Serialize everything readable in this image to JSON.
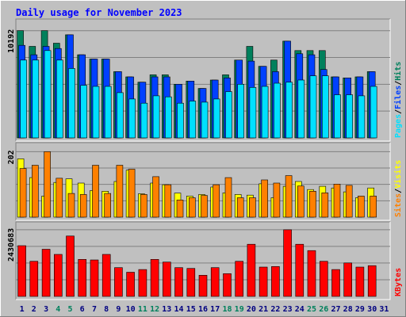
{
  "chart_data": {
    "type": "bar",
    "title": "Daily usage for November 2023",
    "colors": {
      "background": "#c0c0c0",
      "panel": "#c0c0c0",
      "title_text": "#0000ff",
      "hits": "#00805c",
      "files": "#0040ff",
      "pages": "#00e0ff",
      "visits": "#ffff00",
      "sites": "#ff8000",
      "kbytes": "#ff0000",
      "weekend_label": "#00805c",
      "weekday_label": "#000080"
    },
    "days": [
      "1",
      "2",
      "3",
      "4",
      "5",
      "6",
      "7",
      "8",
      "9",
      "10",
      "11",
      "12",
      "13",
      "14",
      "15",
      "16",
      "17",
      "18",
      "19",
      "20",
      "21",
      "22",
      "23",
      "24",
      "25",
      "26",
      "27",
      "28",
      "29",
      "30",
      "31"
    ],
    "weekend_days": [
      "4",
      "5",
      "11",
      "12",
      "18",
      "19",
      "25",
      "26"
    ],
    "panels": [
      {
        "name": "hits_files_pages",
        "axis_max_label": "10192",
        "ylim": [
          0,
          11000
        ],
        "legend": [
          {
            "text": "Pages",
            "color_key": "pages"
          },
          {
            "text": "Files",
            "color_key": "files"
          },
          {
            "text": "Hits",
            "color_key": "hits"
          }
        ],
        "series": [
          {
            "name": "Hits",
            "color_key": "hits",
            "values": [
              10192,
              8700,
              10192,
              9000,
              9800,
              7900,
              7500,
              7500,
              6300,
              5800,
              5300,
              6000,
              6000,
              5100,
              5400,
              4700,
              5500,
              6000,
              7400,
              8700,
              6800,
              7400,
              9200,
              8300,
              8300,
              8300,
              5800,
              5700,
              5800,
              6300,
              0
            ]
          },
          {
            "name": "Files",
            "color_key": "files",
            "values": [
              8800,
              7900,
              8700,
              8500,
              9800,
              7900,
              7500,
              7500,
              6300,
              5800,
              5300,
              5800,
              5800,
              5100,
              5400,
              4700,
              5500,
              5700,
              7400,
              7300,
              6800,
              6300,
              9200,
              8000,
              7900,
              6500,
              5800,
              5700,
              5800,
              6300,
              0
            ]
          },
          {
            "name": "Pages",
            "color_key": "pages",
            "values": [
              7400,
              7400,
              8300,
              7400,
              6600,
              5000,
              4900,
              4900,
              4300,
              3700,
              3300,
              4000,
              3900,
              3300,
              3500,
              3400,
              3700,
              4400,
              5100,
              4800,
              4900,
              5200,
              5300,
              5500,
              5900,
              5900,
              4100,
              4100,
              4000,
              4900,
              0
            ]
          }
        ]
      },
      {
        "name": "visits_sites",
        "axis_max_label": "202",
        "ylim": [
          0,
          220
        ],
        "legend": [
          {
            "text": "Sites",
            "color_key": "sites"
          },
          {
            "text": "Visits",
            "color_key": "visits"
          }
        ],
        "series": [
          {
            "name": "Visits",
            "color_key": "visits",
            "values": [
              180,
              122,
              65,
              107,
              118,
              105,
              82,
              80,
              110,
              145,
              72,
              105,
              100,
              74,
              65,
              70,
              93,
              75,
              70,
              68,
              103,
              60,
              95,
              110,
              85,
              95,
              90,
              78,
              60,
              90,
              0
            ]
          },
          {
            "name": "Sites",
            "color_key": "sites",
            "values": [
              150,
              160,
              202,
              120,
              73,
              70,
              160,
              73,
              160,
              148,
              70,
              125,
              100,
              53,
              60,
              67,
              100,
              122,
              60,
              60,
              115,
              105,
              128,
              96,
              80,
              75,
              102,
              98,
              65,
              65,
              0
            ]
          }
        ]
      },
      {
        "name": "kbytes",
        "axis_max_label": "2430683",
        "ylim": [
          0,
          2600000
        ],
        "legend": [
          {
            "text": "KBytes",
            "color_key": "kbytes"
          }
        ],
        "series": [
          {
            "name": "KBytes",
            "color_key": "kbytes",
            "values": [
              1850000,
              1280000,
              1720000,
              1530000,
              2200000,
              1350000,
              1330000,
              1530000,
              1050000,
              880000,
              980000,
              1350000,
              1250000,
              1050000,
              1020000,
              770000,
              1050000,
              830000,
              1280000,
              1900000,
              1070000,
              1090000,
              2430683,
              1900000,
              1670000,
              1280000,
              980000,
              1220000,
              1070000,
              1120000,
              0
            ]
          }
        ]
      }
    ]
  }
}
